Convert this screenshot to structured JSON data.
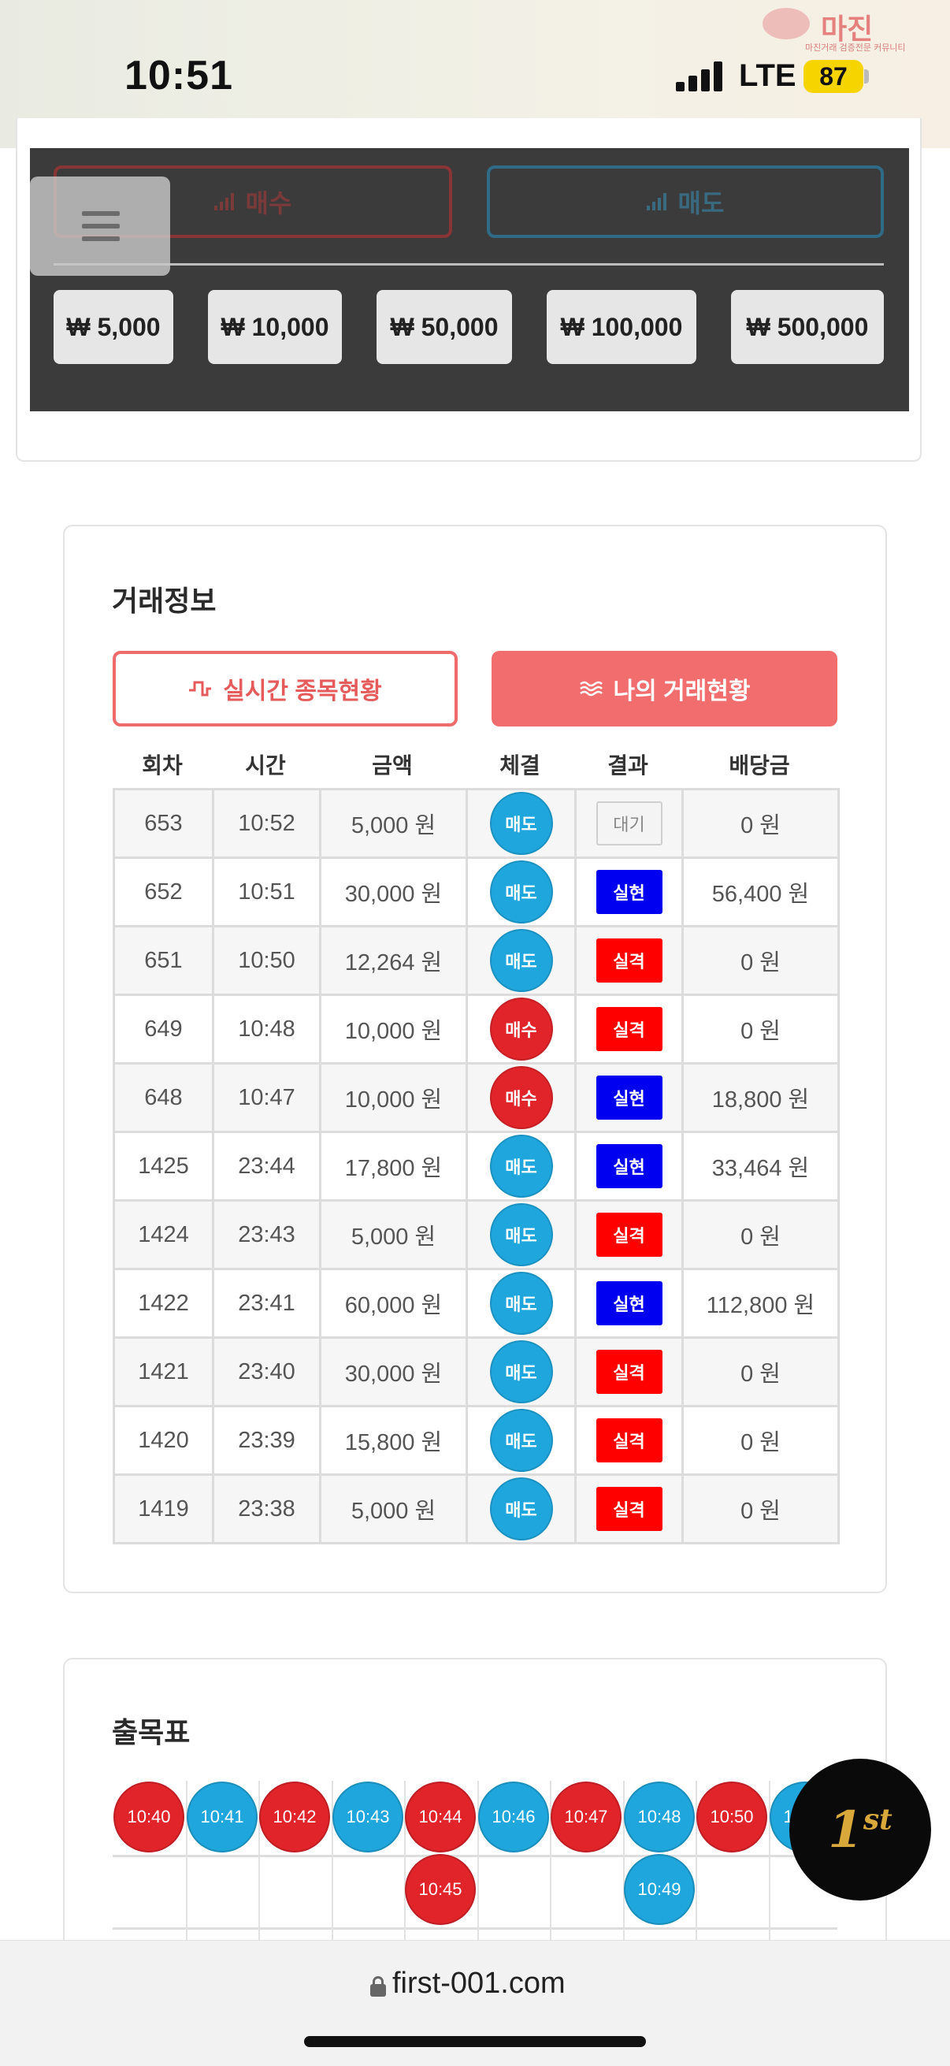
{
  "status_bar": {
    "time": "10:51",
    "network": "LTE",
    "battery": "87"
  },
  "watermark": {
    "title": "마진",
    "subtitle": "마진거래 검증전문 커뮤니티"
  },
  "trade_panel": {
    "buy_label": "매수",
    "sell_label": "매도",
    "amounts": [
      "₩ 5,000",
      "₩ 10,000",
      "₩ 50,000",
      "₩ 100,000",
      "₩ 500,000"
    ]
  },
  "trade_info": {
    "title": "거래정보",
    "tab_live": "실시간 종목현황",
    "tab_mine": "나의 거래현황",
    "columns": [
      "회차",
      "시간",
      "금액",
      "체결",
      "결과",
      "배당금"
    ],
    "rows": [
      {
        "round": "653",
        "time": "10:52",
        "amount": "5,000 원",
        "side": "매도",
        "result": "대기",
        "payout": "0 원"
      },
      {
        "round": "652",
        "time": "10:51",
        "amount": "30,000 원",
        "side": "매도",
        "result": "실현",
        "payout": "56,400 원"
      },
      {
        "round": "651",
        "time": "10:50",
        "amount": "12,264 원",
        "side": "매도",
        "result": "실격",
        "payout": "0 원"
      },
      {
        "round": "649",
        "time": "10:48",
        "amount": "10,000 원",
        "side": "매수",
        "result": "실격",
        "payout": "0 원"
      },
      {
        "round": "648",
        "time": "10:47",
        "amount": "10,000 원",
        "side": "매수",
        "result": "실현",
        "payout": "18,800 원"
      },
      {
        "round": "1425",
        "time": "23:44",
        "amount": "17,800 원",
        "side": "매도",
        "result": "실현",
        "payout": "33,464 원"
      },
      {
        "round": "1424",
        "time": "23:43",
        "amount": "5,000 원",
        "side": "매도",
        "result": "실격",
        "payout": "0 원"
      },
      {
        "round": "1422",
        "time": "23:41",
        "amount": "60,000 원",
        "side": "매도",
        "result": "실현",
        "payout": "112,800 원"
      },
      {
        "round": "1421",
        "time": "23:40",
        "amount": "30,000 원",
        "side": "매도",
        "result": "실격",
        "payout": "0 원"
      },
      {
        "round": "1420",
        "time": "23:39",
        "amount": "15,800 원",
        "side": "매도",
        "result": "실격",
        "payout": "0 원"
      },
      {
        "round": "1419",
        "time": "23:38",
        "amount": "5,000 원",
        "side": "매도",
        "result": "실격",
        "payout": "0 원"
      }
    ]
  },
  "history": {
    "title": "출목표",
    "columns": [
      [
        "10:40"
      ],
      [
        "10:41"
      ],
      [
        "10:42"
      ],
      [
        "10:43"
      ],
      [
        "10:44",
        "10:45"
      ],
      [
        "10:46"
      ],
      [
        "10:47"
      ],
      [
        "10:48",
        "10:49"
      ],
      [
        "10:50"
      ],
      [
        "10:51"
      ]
    ],
    "column_sides": [
      "매수",
      "매도",
      "매수",
      "매도",
      "매수",
      "매도",
      "매수",
      "매도",
      "매수",
      "매도"
    ]
  },
  "fab": {
    "label": "1",
    "suffix": "st"
  },
  "browser": {
    "url": "first-001.com"
  },
  "colors": {
    "buy": "#e0242a",
    "sell": "#1fa6dc",
    "win": "#0000f0",
    "lose": "#ff0000",
    "accent": "#f26d6d"
  }
}
